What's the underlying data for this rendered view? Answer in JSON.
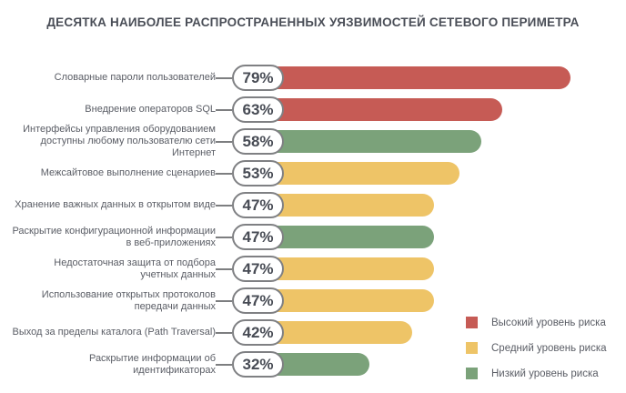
{
  "colors": {
    "high": "#c65b55",
    "medium": "#eec467",
    "low": "#7ba27a"
  },
  "chart_data": {
    "type": "bar",
    "orientation": "horizontal",
    "title": "ДЕСЯТКА НАИБОЛЕЕ РАСПРОСТРАНЕННЫХ УЯЗВИМОСТЕЙ СЕТЕВОГО ПЕРИМЕТРА",
    "value_unit": "%",
    "value_range": [
      0,
      100
    ],
    "legend_position": "bottom-right",
    "bars": [
      {
        "category": "Словарные пароли пользователей",
        "label_lines": [
          "Словарные пароли пользователей"
        ],
        "value": 79,
        "risk": "high"
      },
      {
        "category": "Внедрение операторов SQL",
        "label_lines": [
          "Внедрение операторов SQL"
        ],
        "value": 63,
        "risk": "high"
      },
      {
        "category": "Интерфейсы управления оборудованием доступны любому пользователю сети Интернет",
        "label_lines": [
          "Интерфейсы управления оборудованием",
          "доступны любому пользователю сети Интернет"
        ],
        "value": 58,
        "risk": "low"
      },
      {
        "category": "Межсайтовое выполнение сценариев",
        "label_lines": [
          "Межсайтовое выполнение сценариев"
        ],
        "value": 53,
        "risk": "medium"
      },
      {
        "category": "Хранение важных данных в открытом виде",
        "label_lines": [
          "Хранение важных данных в открытом виде"
        ],
        "value": 47,
        "risk": "medium"
      },
      {
        "category": "Раскрытие конфигурационной информации в веб-приложениях",
        "label_lines": [
          "Раскрытие конфигурационной информации",
          "в веб-приложениях"
        ],
        "value": 47,
        "risk": "low"
      },
      {
        "category": "Недостаточная защита от подбора учетных данных",
        "label_lines": [
          "Недостаточная защита от подбора",
          "учетных данных"
        ],
        "value": 47,
        "risk": "medium"
      },
      {
        "category": "Использование открытых протоколов передачи данных",
        "label_lines": [
          "Использование открытых протоколов",
          "передачи данных"
        ],
        "value": 47,
        "risk": "medium"
      },
      {
        "category": "Выход за пределы каталога (Path Traversal)",
        "label_lines": [
          "Выход за пределы каталога (Path Traversal)"
        ],
        "value": 42,
        "risk": "medium"
      },
      {
        "category": "Раскрытие информации об идентификаторах",
        "label_lines": [
          "Раскрытие информации об идентификаторах"
        ],
        "value": 32,
        "risk": "low"
      }
    ],
    "legend": [
      {
        "level": "high",
        "label": "Высокий уровень риска"
      },
      {
        "level": "medium",
        "label": "Средний уровень риска"
      },
      {
        "level": "low",
        "label": "Низкий уровень риска"
      }
    ]
  }
}
